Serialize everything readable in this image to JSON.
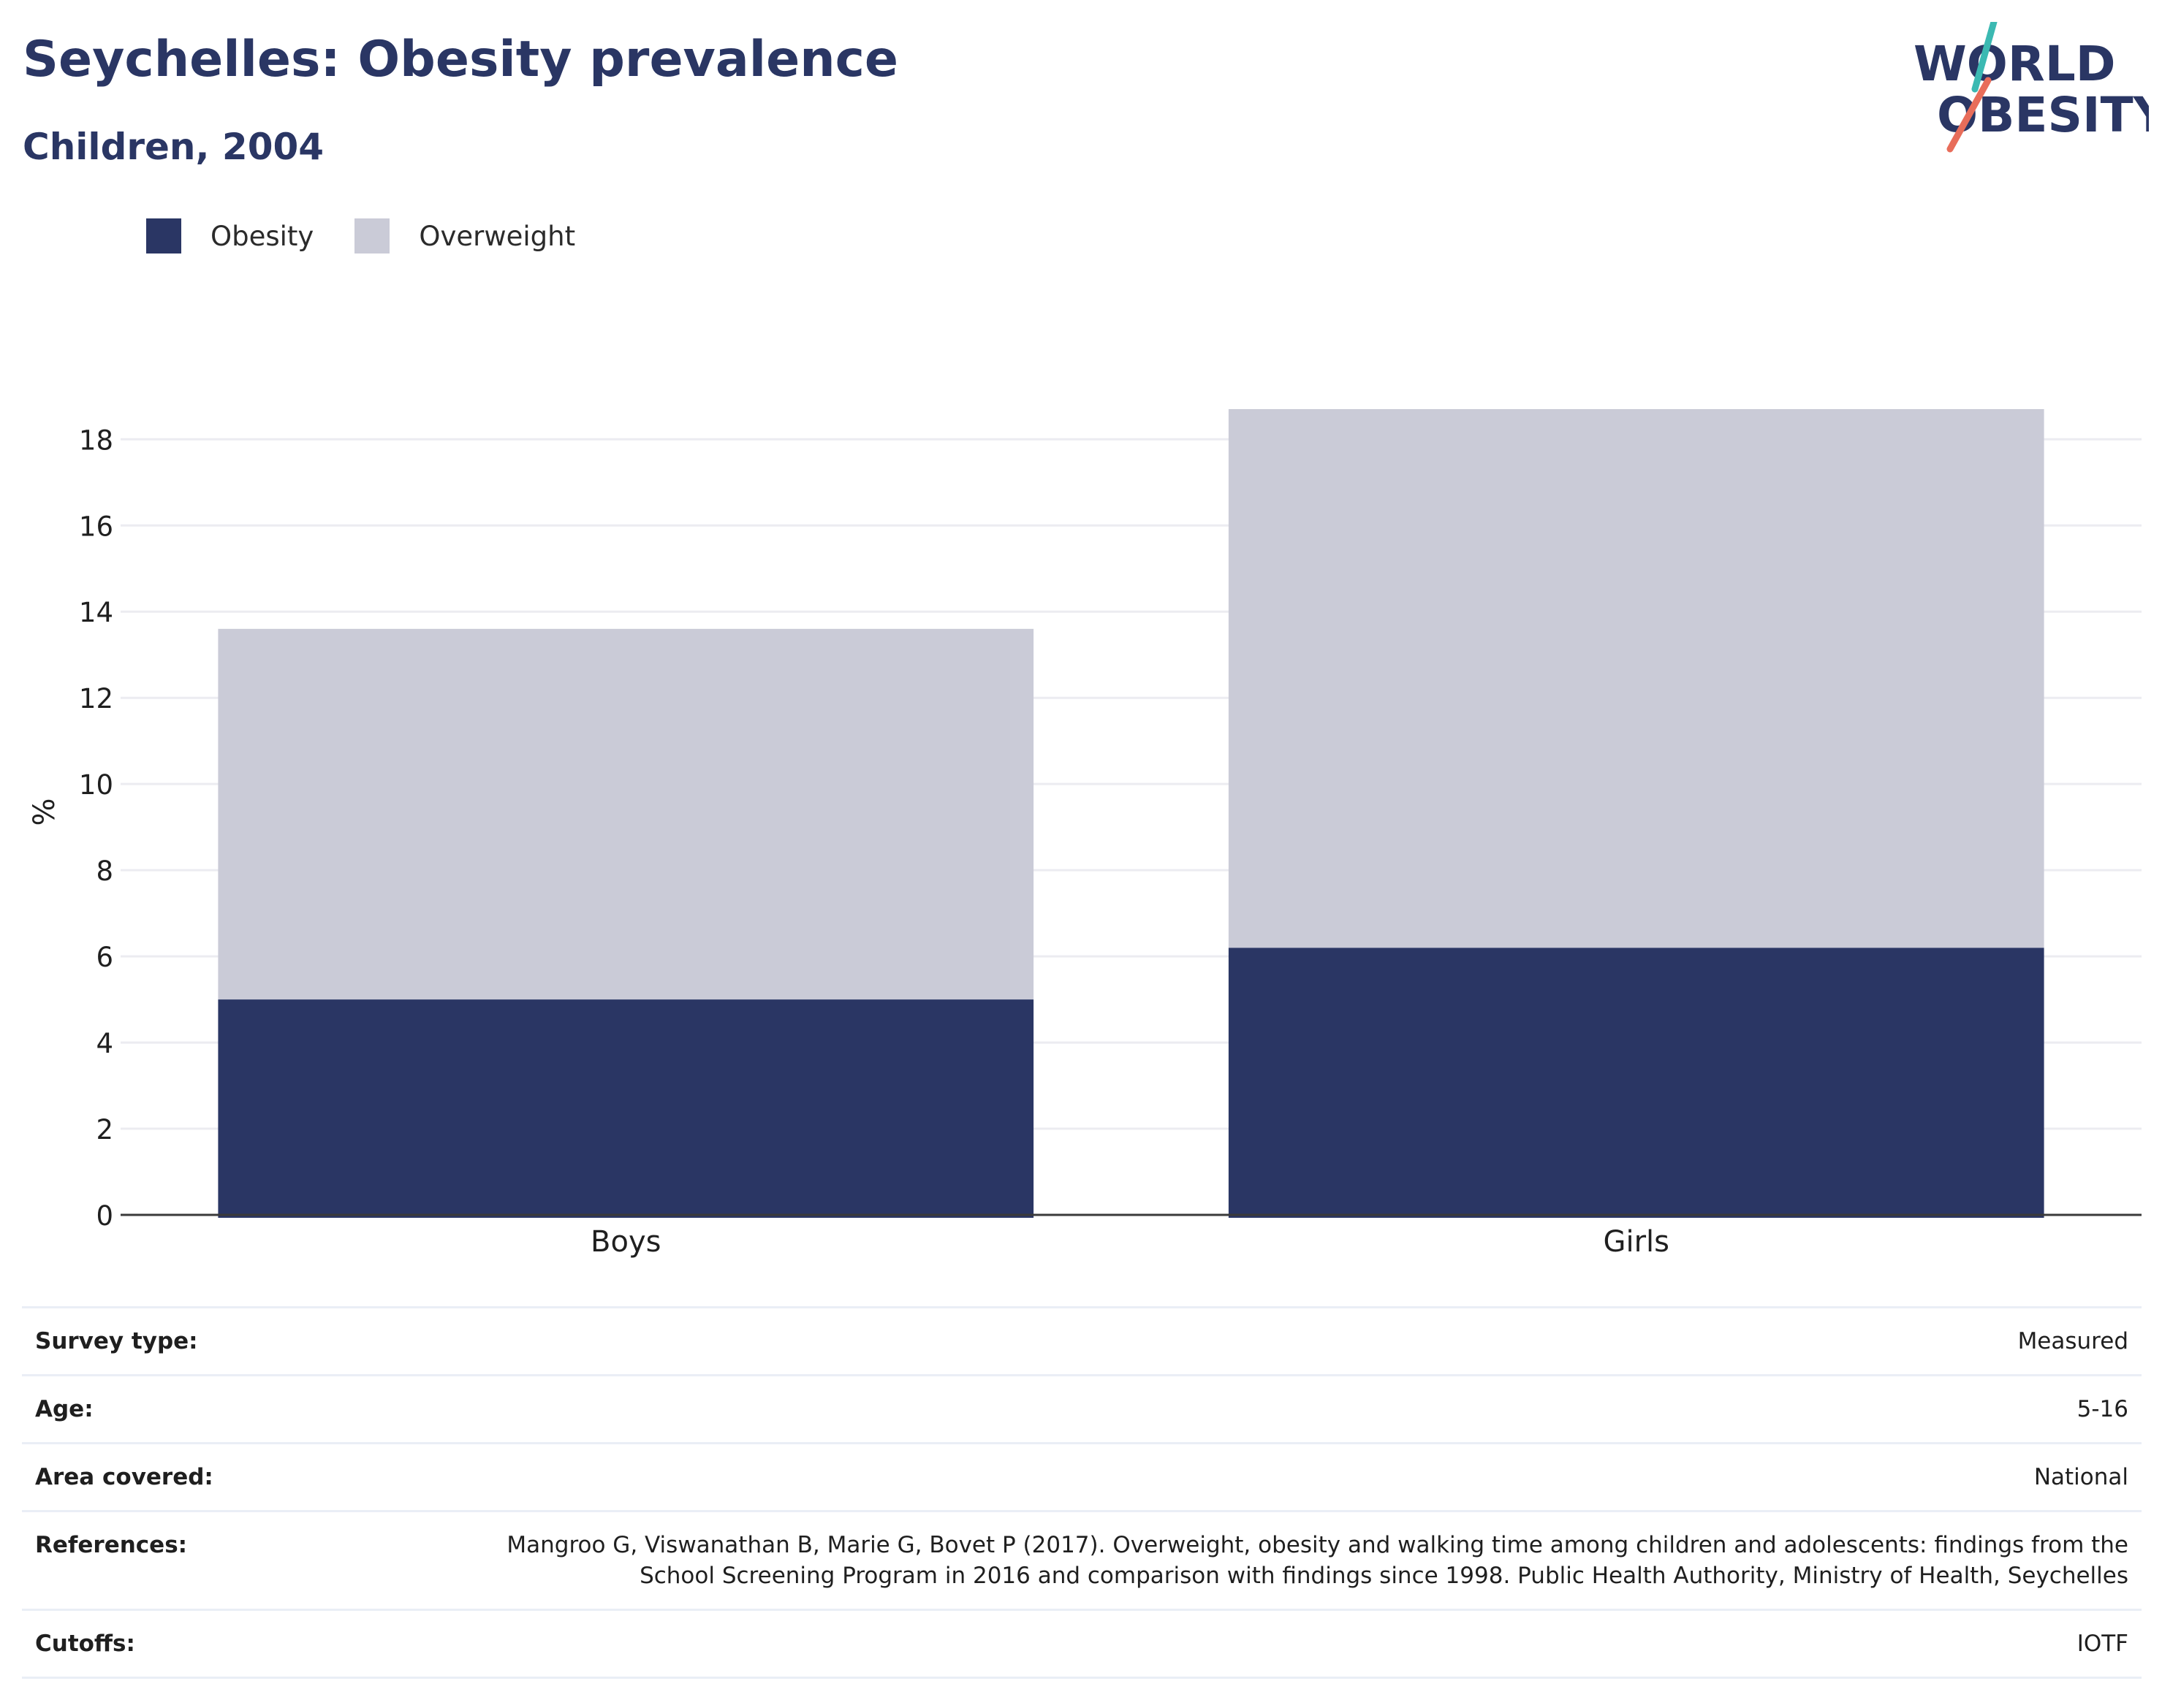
{
  "title": "Seychelles: Obesity prevalence",
  "subtitle": "Children, 2004",
  "logo": {
    "line1": "WORLD",
    "line2": "OBESITY"
  },
  "colors": {
    "obesity": "#2a3664",
    "overweight": "#cacbd7",
    "grid": "#ececf1",
    "axis": "#3a3a3a"
  },
  "chart_data": {
    "type": "bar",
    "stacked": true,
    "categories": [
      "Boys",
      "Girls"
    ],
    "series": [
      {
        "name": "Obesity",
        "values": [
          5.0,
          6.2
        ]
      },
      {
        "name": "Overweight",
        "values": [
          8.6,
          12.5
        ]
      }
    ],
    "ylabel": "%",
    "ylim": [
      0,
      18.7
    ],
    "yticks": [
      0,
      2,
      4,
      6,
      8,
      10,
      12,
      14,
      16,
      18
    ],
    "grid": true,
    "legend": "top-left"
  },
  "meta": [
    {
      "key": "Survey type:",
      "value": "Measured"
    },
    {
      "key": "Age:",
      "value": "5-16"
    },
    {
      "key": "Area covered:",
      "value": "National"
    },
    {
      "key": "References:",
      "value": "Mangroo G, Viswanathan B, Marie G, Bovet P (2017). Overweight, obesity and walking time among children and adolescents: findings from the School Screening Program in 2016 and comparison with findings since 1998. Public Health Authority, Ministry of Health, Seychelles"
    },
    {
      "key": "Cutoffs:",
      "value": "IOTF"
    }
  ]
}
